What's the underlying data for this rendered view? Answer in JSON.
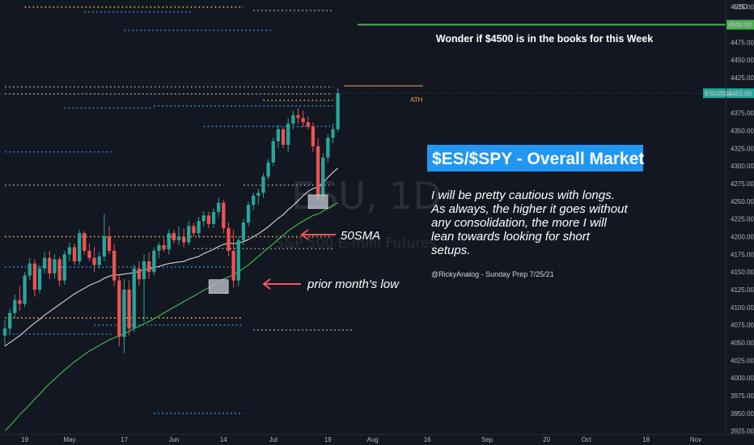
{
  "chart_data": {
    "type": "candlestick",
    "symbol_watermark": "ESU, 1D",
    "symbol_description": "S&P 500 E-mini Futures",
    "currency": "USD",
    "ylim": [
      3920,
      4535
    ],
    "y_ticks": [
      3925,
      3950,
      3975,
      4000,
      4025,
      4050,
      4075,
      4100,
      4125,
      4150,
      4175,
      4200,
      4225,
      4250,
      4275,
      4300,
      4325,
      4350,
      4375,
      4400,
      4425,
      4450,
      4475,
      4500,
      4525
    ],
    "y_tick_labels": [
      "3925.00",
      "3950.00",
      "3975.00",
      "4000.00",
      "4025.00",
      "4050.00",
      "4075.00",
      "4100.00",
      "4125.00",
      "4150.00",
      "4175.00",
      "4200.00",
      "4225.00",
      "4250.00",
      "4275.00",
      "4300.00",
      "4325.00",
      "4350.00",
      "4375.00",
      "4400.00",
      "4425.00",
      "4450.00",
      "4475.00",
      "4500.00",
      "4525.00"
    ],
    "x_ticks": [
      {
        "label": "19",
        "bar": 4
      },
      {
        "label": "May",
        "bar": 13
      },
      {
        "label": "17",
        "bar": 24
      },
      {
        "label": "Jun",
        "bar": 34
      },
      {
        "label": "14",
        "bar": 44
      },
      {
        "label": "Jul",
        "bar": 54
      },
      {
        "label": "19",
        "bar": 65
      },
      {
        "label": "Aug",
        "bar": 74
      },
      {
        "label": "16",
        "bar": 85
      },
      {
        "label": "Sep",
        "bar": 97
      },
      {
        "label": "20",
        "bar": 109
      },
      {
        "label": "Oct",
        "bar": 117
      },
      {
        "label": "18",
        "bar": 129
      },
      {
        "label": "Nov",
        "bar": 139
      }
    ],
    "bars_total": 146,
    "candles": [
      {
        "o": 4060,
        "h": 4082,
        "l": 4045,
        "c": 4070
      },
      {
        "o": 4070,
        "h": 4098,
        "l": 4062,
        "c": 4092
      },
      {
        "o": 4092,
        "h": 4118,
        "l": 4085,
        "c": 4110
      },
      {
        "o": 4110,
        "h": 4130,
        "l": 4095,
        "c": 4105
      },
      {
        "o": 4105,
        "h": 4150,
        "l": 4100,
        "c": 4145
      },
      {
        "o": 4145,
        "h": 4170,
        "l": 4138,
        "c": 4162
      },
      {
        "o": 4162,
        "h": 4168,
        "l": 4115,
        "c": 4125
      },
      {
        "o": 4125,
        "h": 4160,
        "l": 4120,
        "c": 4155
      },
      {
        "o": 4155,
        "h": 4178,
        "l": 4148,
        "c": 4170
      },
      {
        "o": 4170,
        "h": 4180,
        "l": 4140,
        "c": 4148
      },
      {
        "o": 4148,
        "h": 4175,
        "l": 4140,
        "c": 4168
      },
      {
        "o": 4168,
        "h": 4172,
        "l": 4130,
        "c": 4138
      },
      {
        "o": 4138,
        "h": 4180,
        "l": 4132,
        "c": 4175
      },
      {
        "o": 4175,
        "h": 4192,
        "l": 4165,
        "c": 4185
      },
      {
        "o": 4185,
        "h": 4190,
        "l": 4160,
        "c": 4165
      },
      {
        "o": 4165,
        "h": 4210,
        "l": 4160,
        "c": 4205
      },
      {
        "o": 4205,
        "h": 4208,
        "l": 4175,
        "c": 4180
      },
      {
        "o": 4180,
        "h": 4190,
        "l": 4165,
        "c": 4170
      },
      {
        "o": 4170,
        "h": 4185,
        "l": 4150,
        "c": 4160
      },
      {
        "o": 4160,
        "h": 4178,
        "l": 4155,
        "c": 4172
      },
      {
        "o": 4172,
        "h": 4232,
        "l": 4165,
        "c": 4200
      },
      {
        "o": 4200,
        "h": 4215,
        "l": 4175,
        "c": 4180
      },
      {
        "o": 4180,
        "h": 4190,
        "l": 4130,
        "c": 4138
      },
      {
        "o": 4138,
        "h": 4145,
        "l": 4045,
        "c": 4058
      },
      {
        "o": 4058,
        "h": 4140,
        "l": 4035,
        "c": 4125
      },
      {
        "o": 4125,
        "h": 4138,
        "l": 4060,
        "c": 4070
      },
      {
        "o": 4070,
        "h": 4160,
        "l": 4065,
        "c": 4155
      },
      {
        "o": 4155,
        "h": 4165,
        "l": 4130,
        "c": 4140
      },
      {
        "o": 4140,
        "h": 4175,
        "l": 4080,
        "c": 4165
      },
      {
        "o": 4165,
        "h": 4178,
        "l": 4140,
        "c": 4150
      },
      {
        "o": 4150,
        "h": 4185,
        "l": 4145,
        "c": 4180
      },
      {
        "o": 4180,
        "h": 4192,
        "l": 4170,
        "c": 4188
      },
      {
        "o": 4188,
        "h": 4198,
        "l": 4178,
        "c": 4182
      },
      {
        "o": 4182,
        "h": 4210,
        "l": 4175,
        "c": 4205
      },
      {
        "o": 4205,
        "h": 4210,
        "l": 4190,
        "c": 4195
      },
      {
        "o": 4195,
        "h": 4215,
        "l": 4188,
        "c": 4200
      },
      {
        "o": 4200,
        "h": 4212,
        "l": 4185,
        "c": 4192
      },
      {
        "o": 4192,
        "h": 4222,
        "l": 4188,
        "c": 4215
      },
      {
        "o": 4215,
        "h": 4220,
        "l": 4200,
        "c": 4205
      },
      {
        "o": 4205,
        "h": 4228,
        "l": 4198,
        "c": 4222
      },
      {
        "o": 4222,
        "h": 4236,
        "l": 4215,
        "c": 4230
      },
      {
        "o": 4230,
        "h": 4235,
        "l": 4212,
        "c": 4218
      },
      {
        "o": 4218,
        "h": 4240,
        "l": 4212,
        "c": 4235
      },
      {
        "o": 4235,
        "h": 4255,
        "l": 4228,
        "c": 4248
      },
      {
        "o": 4248,
        "h": 4252,
        "l": 4205,
        "c": 4212
      },
      {
        "o": 4212,
        "h": 4220,
        "l": 4172,
        "c": 4180
      },
      {
        "o": 4180,
        "h": 4210,
        "l": 4128,
        "c": 4138
      },
      {
        "o": 4138,
        "h": 4200,
        "l": 4130,
        "c": 4195
      },
      {
        "o": 4195,
        "h": 4225,
        "l": 4188,
        "c": 4220
      },
      {
        "o": 4220,
        "h": 4250,
        "l": 4215,
        "c": 4245
      },
      {
        "o": 4245,
        "h": 4262,
        "l": 4238,
        "c": 4258
      },
      {
        "o": 4258,
        "h": 4268,
        "l": 4245,
        "c": 4262
      },
      {
        "o": 4262,
        "h": 4290,
        "l": 4255,
        "c": 4285
      },
      {
        "o": 4285,
        "h": 4310,
        "l": 4280,
        "c": 4305
      },
      {
        "o": 4305,
        "h": 4340,
        "l": 4300,
        "c": 4335
      },
      {
        "o": 4335,
        "h": 4358,
        "l": 4325,
        "c": 4352
      },
      {
        "o": 4352,
        "h": 4355,
        "l": 4325,
        "c": 4330
      },
      {
        "o": 4330,
        "h": 4368,
        "l": 4320,
        "c": 4360
      },
      {
        "o": 4360,
        "h": 4378,
        "l": 4352,
        "c": 4372
      },
      {
        "o": 4372,
        "h": 4382,
        "l": 4360,
        "c": 4368
      },
      {
        "o": 4368,
        "h": 4378,
        "l": 4355,
        "c": 4362
      },
      {
        "o": 4362,
        "h": 4370,
        "l": 4352,
        "c": 4356
      },
      {
        "o": 4356,
        "h": 4362,
        "l": 4320,
        "c": 4328
      },
      {
        "o": 4328,
        "h": 4340,
        "l": 4250,
        "c": 4255
      },
      {
        "o": 4255,
        "h": 4318,
        "l": 4250,
        "c": 4312
      },
      {
        "o": 4312,
        "h": 4345,
        "l": 4305,
        "c": 4340
      },
      {
        "o": 4340,
        "h": 4360,
        "l": 4332,
        "c": 4352
      },
      {
        "o": 4352,
        "h": 4410,
        "l": 4348,
        "c": 4403
      }
    ],
    "sma20": [
      4045,
      4050,
      4055,
      4060,
      4066,
      4072,
      4078,
      4083,
      4089,
      4094,
      4099,
      4104,
      4109,
      4114,
      4119,
      4123,
      4127,
      4131,
      4134,
      4137,
      4141,
      4144,
      4146,
      4146,
      4147,
      4148,
      4149,
      4151,
      4153,
      4154,
      4156,
      4158,
      4160,
      4162,
      4163,
      4164,
      4165,
      4168,
      4170,
      4172,
      4176,
      4179,
      4182,
      4186,
      4189,
      4191,
      4190,
      4191,
      4193,
      4196,
      4200,
      4204,
      4209,
      4214,
      4220,
      4226,
      4231,
      4238,
      4244,
      4251,
      4258,
      4264,
      4268,
      4270,
      4276,
      4284,
      4291,
      4297
    ],
    "sma50": [
      3925,
      3932,
      3940,
      3948,
      3955,
      3962,
      3970,
      3977,
      3985,
      3992,
      3998,
      4005,
      4011,
      4017,
      4023,
      4028,
      4033,
      4038,
      4042,
      4046,
      4050,
      4054,
      4057,
      4060,
      4063,
      4066,
      4070,
      4073,
      4077,
      4080,
      4084,
      4088,
      4092,
      4096,
      4100,
      4104,
      4108,
      4112,
      4116,
      4120,
      4124,
      4128,
      4132,
      4136,
      4140,
      4143,
      4146,
      4150,
      4155,
      4160,
      4166,
      4172,
      4178,
      4184,
      4190,
      4196,
      4202,
      4208,
      4213,
      4218,
      4222,
      4226,
      4230,
      4232,
      4236,
      4240,
      4244,
      4248
    ],
    "sma20_color": "#e8e8e8",
    "sma50_color": "#43b049",
    "up_color": "#26a69a",
    "down_color": "#ef5350",
    "bg_color": "#131722",
    "horizontal_levels": [
      {
        "price": 4500,
        "color": "#4caf50",
        "style": "solid",
        "label": "4500.00"
      },
      {
        "price": 4410,
        "color": "#f7a440",
        "style": "solid",
        "label": "ATH"
      },
      {
        "price": 4403,
        "color": "#26a69a",
        "style": "price-line",
        "label": "4403.00",
        "tag": "ESU2021"
      }
    ],
    "dotted_levels": [
      {
        "price": 4525,
        "from": 4,
        "to": 48,
        "color": "#f2b33d"
      },
      {
        "price": 4518,
        "from": 16,
        "to": 38,
        "color": "#2e8fd6"
      },
      {
        "price": 4492,
        "from": 24,
        "to": 54,
        "color": "#2e8fd6"
      },
      {
        "price": 4520,
        "from": 50,
        "to": 66,
        "color": "#9598a1"
      },
      {
        "price": 4412,
        "from": 0,
        "to": 66,
        "color": "#9598a1"
      },
      {
        "price": 4402,
        "from": 0,
        "to": 66,
        "color": "#9598a1"
      },
      {
        "price": 4393,
        "from": 52,
        "to": 66,
        "color": "#f2b33d"
      },
      {
        "price": 4385,
        "from": 30,
        "to": 66,
        "color": "#2e8fd6"
      },
      {
        "price": 4382,
        "from": 12,
        "to": 30,
        "color": "#2e8fd6"
      },
      {
        "price": 4320,
        "from": 0,
        "to": 22,
        "color": "#2e8fd6"
      },
      {
        "price": 4356,
        "from": 40,
        "to": 66,
        "color": "#2e8fd6"
      },
      {
        "price": 4273,
        "from": 0,
        "to": 44,
        "color": "#9598a1"
      },
      {
        "price": 4273,
        "from": 48,
        "to": 66,
        "color": "#9598a1"
      },
      {
        "price": 4200,
        "from": 0,
        "to": 66,
        "color": "#f2b33d"
      },
      {
        "price": 4183,
        "from": 38,
        "to": 66,
        "color": "#9598a1"
      },
      {
        "price": 4157,
        "from": 0,
        "to": 46,
        "color": "#2e8fd6"
      },
      {
        "price": 4085,
        "from": 0,
        "to": 48,
        "color": "#f2b33d"
      },
      {
        "price": 4075,
        "from": 18,
        "to": 48,
        "color": "#2e8fd6"
      },
      {
        "price": 4068,
        "from": 50,
        "to": 70,
        "color": "#9598a1"
      },
      {
        "price": 4062,
        "from": 0,
        "to": 22,
        "color": "#2e8fd6"
      },
      {
        "price": 3950,
        "from": 30,
        "to": 48,
        "color": "#2e8fd6"
      }
    ],
    "annotation_boxes": [
      {
        "bar": 43,
        "price": 4130,
        "label": "prior month's low"
      },
      {
        "bar": 63,
        "price": 4250,
        "label": "50SMA"
      }
    ]
  },
  "annotations": {
    "headline": "Wonder if $4500 is in the books for this Week",
    "title_box": "$ES/$SPY - Overall Market",
    "body": [
      "I will be pretty cautious with longs.",
      "As always, the higher it goes without",
      "any consolidation, the more I will",
      "lean towards looking for short",
      "setups."
    ],
    "signature": "@RickyAnalog - Sunday Prep 7/25/21",
    "label_50sma": "50SMA",
    "label_prior_low": "prior month's low",
    "label_ath": "ATH",
    "title_box_color": "#2196f3",
    "arrow_color": "#f7525f"
  }
}
